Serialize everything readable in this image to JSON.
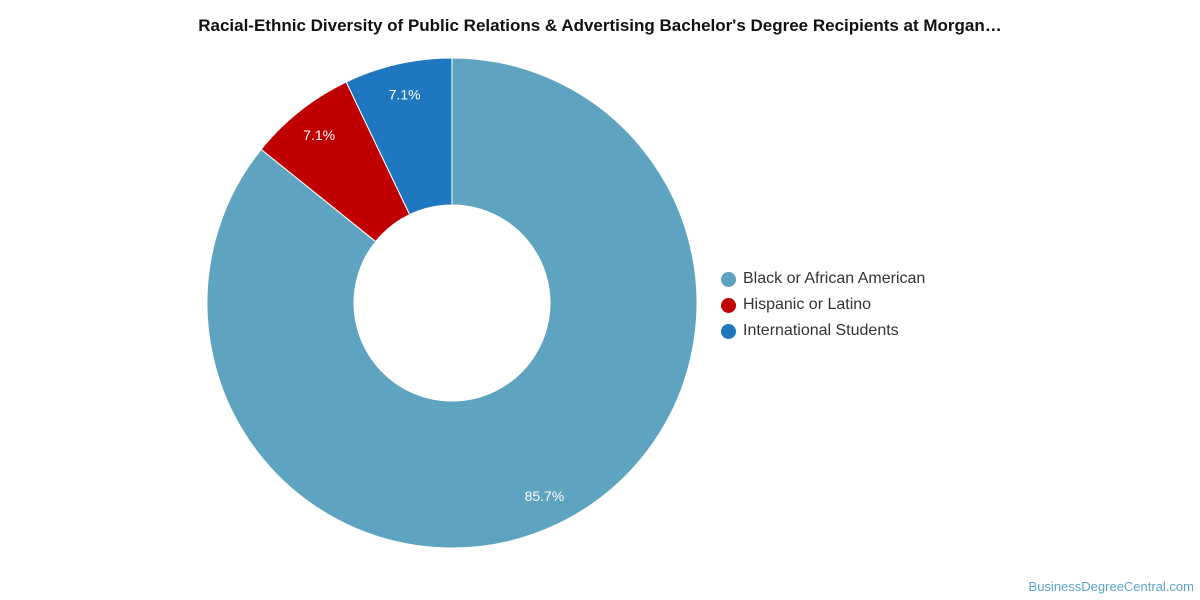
{
  "title": "Racial-Ethnic Diversity of Public Relations & Advertising Bachelor's Degree Recipients at Morgan…",
  "source": "BusinessDegreeCentral.com",
  "chart_data": {
    "type": "pie",
    "style": "donut",
    "title": "Racial-Ethnic Diversity of Public Relations & Advertising Bachelor's Degree Recipients at Morgan…",
    "legend_position": "right",
    "slices": [
      {
        "name": "Black or African American",
        "value": 85.7,
        "label": "85.7%",
        "color": "#5ea3c0"
      },
      {
        "name": "Hispanic or Latino",
        "value": 7.1,
        "label": "7.1%",
        "color": "#c00000"
      },
      {
        "name": "International Students",
        "value": 7.1,
        "label": "7.1%",
        "color": "#1f77c0"
      }
    ]
  }
}
